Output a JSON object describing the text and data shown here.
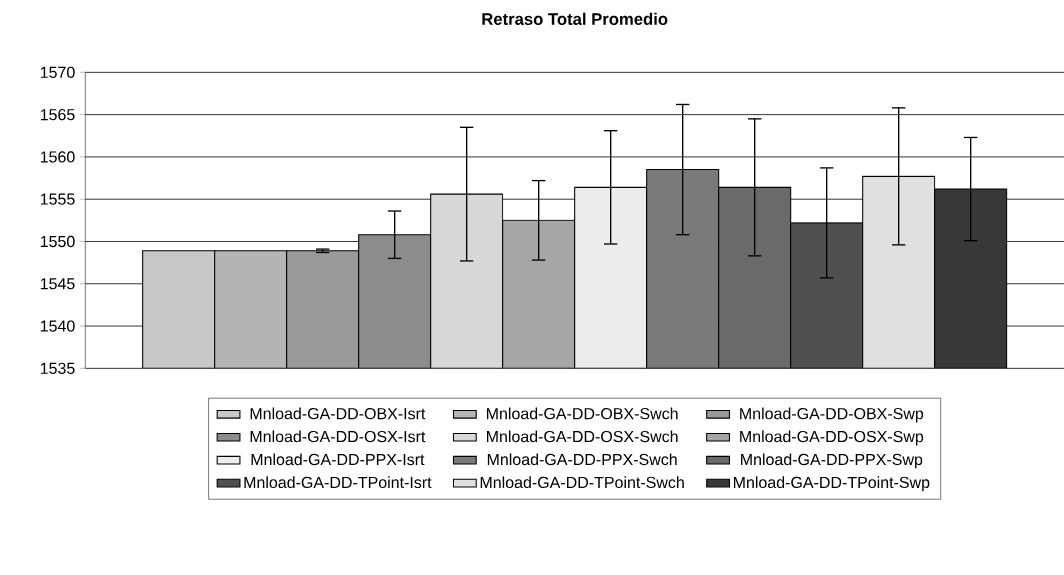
{
  "chart_data": {
    "type": "bar",
    "title": "Retraso Total Promedio",
    "categories": [
      null
    ],
    "series": [
      {
        "name": "Mnload-GA-DD-OBX-Isrt",
        "color": "#c8c8c8",
        "values": [
          1548.9
        ],
        "errors": [
          null
        ]
      },
      {
        "name": "Mnload-GA-DD-OBX-Swch",
        "color": "#b4b4b4",
        "values": [
          1548.9
        ],
        "errors": [
          null
        ]
      },
      {
        "name": "Mnload-GA-DD-OBX-Swp",
        "color": "#9a9a9a",
        "values": [
          1548.9
        ],
        "errors": [
          0.2
        ]
      },
      {
        "name": "Mnload-GA-DD-OSX-Isrt",
        "color": "#8c8c8c",
        "values": [
          1550.8
        ],
        "errors": [
          2.8
        ]
      },
      {
        "name": "Mnload-GA-DD-OSX-Swch",
        "color": "#d8d8d8",
        "values": [
          1555.6
        ],
        "errors": [
          7.9
        ]
      },
      {
        "name": "Mnload-GA-DD-OSX-Swp",
        "color": "#a6a6a6",
        "values": [
          1552.5
        ],
        "errors": [
          4.7
        ]
      },
      {
        "name": "Mnload-GA-DD-PPX-Isrt",
        "color": "#ececec",
        "values": [
          1556.4
        ],
        "errors": [
          6.7
        ]
      },
      {
        "name": "Mnload-GA-DD-PPX-Swch",
        "color": "#7a7a7a",
        "values": [
          1558.5
        ],
        "errors": [
          7.7
        ]
      },
      {
        "name": "Mnload-GA-DD-PPX-Swp",
        "color": "#6a6a6a",
        "values": [
          1556.4
        ],
        "errors": [
          8.1
        ]
      },
      {
        "name": "Mnload-GA-DD-TPoint-Isrt",
        "color": "#505050",
        "values": [
          1552.2
        ],
        "errors": [
          6.5
        ]
      },
      {
        "name": "Mnload-GA-DD-TPoint-Swch",
        "color": "#e0e0e0",
        "values": [
          1557.7
        ],
        "errors": [
          8.1
        ]
      },
      {
        "name": "Mnload-GA-DD-TPoint-Swp",
        "color": "#383838",
        "values": [
          1556.2
        ],
        "errors": [
          6.1
        ]
      }
    ],
    "ylim": [
      1535,
      1570
    ],
    "yticks": [
      1535,
      1540,
      1545,
      1550,
      1555,
      1560,
      1565,
      1570
    ],
    "grid": "y",
    "legend": "bottom",
    "tick_labels": "y"
  }
}
